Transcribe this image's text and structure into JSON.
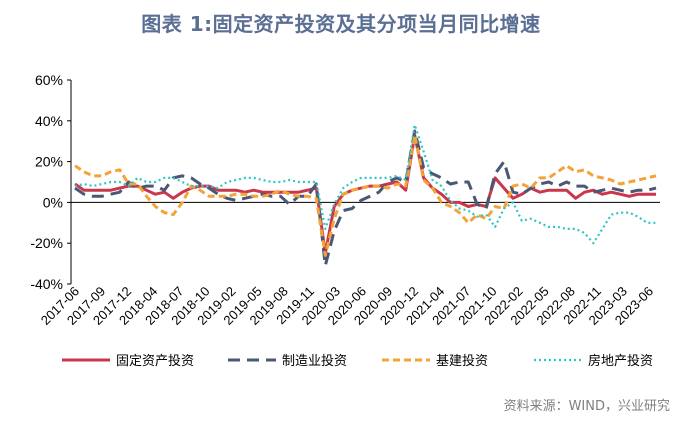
{
  "chart_data": {
    "type": "line",
    "title": "图表 1:固定资产投资及其分项当月同比增速",
    "source": "资料来源：WIND，兴业研究",
    "ylim": [
      -40,
      60
    ],
    "y_ticks": [
      "60%",
      "40%",
      "20%",
      "0%",
      "-20%",
      "-40%"
    ],
    "y_tick_values": [
      60,
      40,
      20,
      0,
      -20,
      -40
    ],
    "grid": false,
    "legend_position": "bottom",
    "x_tick_labels": [
      "2017-06",
      "2017-09",
      "2017-12",
      "2018-04",
      "2018-07",
      "2018-10",
      "2019-02",
      "2019-05",
      "2019-08",
      "2019-11",
      "2020-03",
      "2020-06",
      "2020-09",
      "2020-12",
      "2021-04",
      "2021-07",
      "2021-10",
      "2022-02",
      "2022-05",
      "2022-08",
      "2022-11",
      "2023-03",
      "2023-06"
    ],
    "x": [
      "2017-06",
      "2017-07",
      "2017-08",
      "2017-09",
      "2017-10",
      "2017-11",
      "2017-12",
      "2018-03",
      "2018-04",
      "2018-05",
      "2018-06",
      "2018-07",
      "2018-08",
      "2018-09",
      "2018-10",
      "2018-11",
      "2018-12",
      "2019-02",
      "2019-03",
      "2019-04",
      "2019-05",
      "2019-06",
      "2019-07",
      "2019-08",
      "2019-09",
      "2019-10",
      "2019-11",
      "2019-12",
      "2020-02",
      "2020-03",
      "2020-04",
      "2020-05",
      "2020-06",
      "2020-07",
      "2020-08",
      "2020-09",
      "2020-10",
      "2020-11",
      "2020-12",
      "2021-02",
      "2021-03",
      "2021-04",
      "2021-05",
      "2021-06",
      "2021-07",
      "2021-08",
      "2021-09",
      "2021-10",
      "2021-11",
      "2021-12",
      "2022-02",
      "2022-03",
      "2022-04",
      "2022-05",
      "2022-06",
      "2022-07",
      "2022-08",
      "2022-09",
      "2022-10",
      "2022-11",
      "2022-12",
      "2023-02",
      "2023-03",
      "2023-04",
      "2023-05",
      "2023-06"
    ],
    "series": [
      {
        "name": "固定资产投资",
        "color": "#c9374a",
        "dash": "solid",
        "values": [
          9,
          6,
          6,
          6,
          6,
          7,
          8,
          8,
          6,
          4,
          5,
          2,
          5,
          7,
          8,
          8,
          6,
          6,
          6,
          5,
          6,
          5,
          5,
          5,
          5,
          5,
          6,
          7,
          -25,
          -2,
          4,
          6,
          7,
          8,
          8,
          9,
          10,
          6,
          33,
          12,
          7,
          4,
          0,
          0,
          -2,
          -1,
          -2,
          12,
          7,
          2,
          4,
          7,
          5,
          6,
          6,
          6,
          2,
          5,
          6,
          4,
          5,
          4,
          3,
          4,
          4,
          4
        ]
      },
      {
        "name": "制造业投资",
        "color": "#4a5775",
        "dash": "long",
        "values": [
          7,
          4,
          3,
          3,
          4,
          5,
          10,
          7,
          8,
          8,
          6,
          12,
          13,
          12,
          9,
          7,
          4,
          2,
          1,
          2,
          3,
          4,
          3,
          3,
          -1,
          3,
          3,
          9,
          -31,
          -14,
          -4,
          -3,
          1,
          3,
          5,
          10,
          12,
          10,
          35,
          17,
          14,
          12,
          9,
          10,
          10,
          -1,
          -3,
          14,
          20,
          5,
          4,
          7,
          9,
          10,
          8,
          10,
          8,
          8,
          5,
          6,
          7,
          6,
          5,
          6,
          6,
          7
        ]
      },
      {
        "name": "基建投资",
        "color": "#f3a338",
        "dash": "dash",
        "values": [
          18,
          15,
          13,
          13,
          15,
          16,
          9,
          9,
          3,
          -2,
          -5,
          -6,
          0,
          8,
          6,
          3,
          3,
          3,
          4,
          4,
          3,
          3,
          4,
          6,
          4,
          3,
          3,
          2,
          -26,
          -8,
          4,
          6,
          7,
          8,
          8,
          7,
          9,
          8,
          33,
          11,
          7,
          0,
          -2,
          -5,
          -10,
          -6,
          -8,
          -2,
          -3,
          8,
          9,
          7,
          12,
          12,
          15,
          18,
          15,
          16,
          13,
          12,
          11,
          9,
          10,
          11,
          12,
          13
        ]
      },
      {
        "name": "房地产投资",
        "color": "#2cc6c4",
        "dash": "dot",
        "values": [
          8,
          9,
          8,
          9,
          10,
          10,
          8,
          12,
          10,
          10,
          12,
          12,
          10,
          8,
          8,
          8,
          7,
          10,
          11,
          12,
          12,
          11,
          10,
          10,
          11,
          10,
          10,
          10,
          -13,
          -1,
          7,
          10,
          12,
          12,
          12,
          12,
          13,
          11,
          38,
          25,
          11,
          8,
          1,
          -3,
          -4,
          -7,
          -6,
          -12,
          -3,
          0,
          -9,
          -8,
          -10,
          -12,
          -12,
          -13,
          -13,
          -15,
          -20,
          -13,
          -6,
          -5,
          -5,
          -7,
          -10,
          -10
        ]
      }
    ]
  }
}
